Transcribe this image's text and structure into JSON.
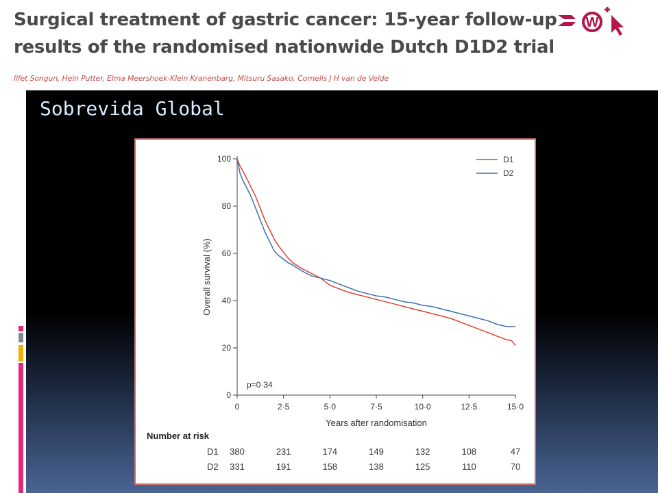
{
  "header": {
    "title_line1": "Surgical treatment of gastric cancer: 15-year follow-up",
    "title_line2": "results of the randomised nationwide Dutch D1D2 trial",
    "authors": "Ilfet Songun, Hein Putter, Elma Meershoek-Klein Kranenbarg, Mitsuru Sasako, Cornelis J H van de Velde"
  },
  "logo": {
    "icon": "publisher-logo-icon",
    "text": "W",
    "color": "#b3174a"
  },
  "sidebar_stripes": [
    "#e0287c",
    "#7a8a90",
    "#f0b000",
    "#e0287c"
  ],
  "slide": {
    "title": "Sobrevida Global"
  },
  "chart_data": {
    "type": "line",
    "title": "",
    "xlabel": "Years after randomisation",
    "ylabel": "Overall survival (%)",
    "xlim": [
      0,
      15
    ],
    "ylim": [
      0,
      100
    ],
    "x_ticks": [
      {
        "v": 0,
        "label": "0"
      },
      {
        "v": 2.5,
        "label": "2·5"
      },
      {
        "v": 5,
        "label": "5·0"
      },
      {
        "v": 7.5,
        "label": "7·5"
      },
      {
        "v": 10,
        "label": "10·0"
      },
      {
        "v": 12.5,
        "label": "12·5"
      },
      {
        "v": 15,
        "label": "15·0"
      }
    ],
    "y_ticks": [
      {
        "v": 0,
        "label": "0"
      },
      {
        "v": 20,
        "label": "20"
      },
      {
        "v": 40,
        "label": "40"
      },
      {
        "v": 60,
        "label": "60"
      },
      {
        "v": 80,
        "label": "80"
      },
      {
        "v": 100,
        "label": "100"
      }
    ],
    "annotation": "p=0·34",
    "legend_position": "top-right",
    "series": [
      {
        "name": "D1",
        "color": "#e04030",
        "x": [
          0,
          0.15,
          0.3,
          0.5,
          0.75,
          1.0,
          1.25,
          1.5,
          1.75,
          2.0,
          2.25,
          2.5,
          2.75,
          3.0,
          3.5,
          4.0,
          4.5,
          5.0,
          5.5,
          6.0,
          6.5,
          7.0,
          7.5,
          8.0,
          8.5,
          9.0,
          9.5,
          10.0,
          10.5,
          11.0,
          11.5,
          12.0,
          12.5,
          13.0,
          13.5,
          14.0,
          14.5,
          14.8,
          15.0
        ],
        "y": [
          100,
          97,
          95,
          92,
          88,
          84,
          79,
          74,
          70,
          66,
          63,
          60.5,
          58,
          56,
          53.5,
          51.5,
          49.5,
          46.5,
          45,
          43.5,
          42.5,
          41.5,
          40.5,
          39.5,
          38.5,
          37.5,
          36.5,
          35.5,
          34.5,
          33.5,
          32.5,
          31,
          29.5,
          28,
          26.5,
          25,
          23.5,
          23,
          21
        ]
      },
      {
        "name": "D2",
        "color": "#3a70b0",
        "x": [
          0,
          0.15,
          0.3,
          0.5,
          0.75,
          1.0,
          1.25,
          1.5,
          1.75,
          2.0,
          2.25,
          2.5,
          2.75,
          3.0,
          3.5,
          4.0,
          4.5,
          5.0,
          5.5,
          6.0,
          6.5,
          7.0,
          7.5,
          8.0,
          8.5,
          9.0,
          9.5,
          10.0,
          10.5,
          11.0,
          11.5,
          12.0,
          12.5,
          13.0,
          13.5,
          14.0,
          14.5,
          15.0
        ],
        "y": [
          100,
          94,
          91,
          88,
          84,
          79,
          74,
          69,
          65,
          61,
          59,
          57.5,
          56,
          55,
          52.5,
          50.5,
          49.5,
          48.5,
          47,
          45.5,
          44,
          43,
          42,
          41.5,
          40.5,
          39.5,
          39,
          38,
          37.5,
          36.5,
          35.5,
          34.5,
          33.5,
          32.5,
          31.5,
          30,
          29,
          29
        ]
      }
    ],
    "risk_table": {
      "title": "Number at risk",
      "rows": [
        {
          "label": "D1",
          "values": [
            "380",
            "231",
            "174",
            "149",
            "132",
            "108",
            "47"
          ]
        },
        {
          "label": "D2",
          "values": [
            "331",
            "191",
            "158",
            "138",
            "125",
            "110",
            "70"
          ]
        }
      ]
    }
  }
}
